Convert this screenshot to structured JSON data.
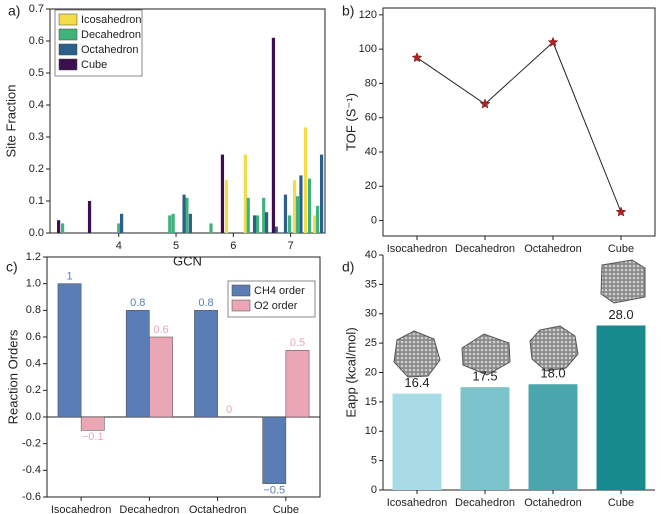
{
  "chart_data": [
    {
      "type": "bar",
      "panel_label": "a)",
      "x_label": "GCN",
      "y_label": "Site Fraction",
      "xlim": [
        2.8,
        7.6
      ],
      "xticks": [
        4,
        5,
        6,
        7
      ],
      "ylim": [
        0,
        0.7
      ],
      "yticks": [
        {
          "value": 0,
          "label": "0.0"
        },
        0.1,
        0.2,
        0.3,
        0.4,
        0.5,
        0.6,
        0.7
      ],
      "legend": "upper left",
      "series": [
        {
          "name": "Icosahedron",
          "color": "#f2dd46",
          "x": [
            5.88,
            6.21,
            7.07,
            7.26,
            7.42
          ],
          "values": [
            0.165,
            0.245,
            0.165,
            0.33,
            0.055
          ]
        },
        {
          "name": "Decahedron",
          "color": "#3fb37b",
          "x": [
            3.02,
            4.0,
            4.89,
            4.95,
            5.19,
            5.61,
            6.26,
            6.42,
            6.53,
            6.98,
            7.12,
            7.33,
            7.47
          ],
          "values": [
            0.03,
            0.03,
            0.055,
            0.06,
            0.11,
            0.03,
            0.11,
            0.055,
            0.11,
            0.055,
            0.115,
            0.17,
            0.085
          ]
        },
        {
          "name": "Octahedron",
          "color": "#2d5f8b",
          "x": [
            4.05,
            5.14,
            5.25,
            6.37,
            6.58,
            6.75,
            6.91,
            7.18,
            7.54
          ],
          "values": [
            0.06,
            0.12,
            0.06,
            0.055,
            0.065,
            0.02,
            0.12,
            0.18,
            0.245
          ]
        },
        {
          "name": "Cube",
          "color": "#3b0f50",
          "x": [
            2.95,
            3.49,
            5.81,
            6.7
          ],
          "values": [
            0.04,
            0.1,
            0.245,
            0.61
          ]
        }
      ]
    },
    {
      "type": "line",
      "panel_label": "b)",
      "y_label": "TOF (S⁻¹)",
      "categories": [
        "Isocahedron",
        "Decahedron",
        "Octahedron",
        "Cube"
      ],
      "values": [
        95,
        68,
        104,
        5
      ],
      "color": "#b22222",
      "line_color": "#222222",
      "ylim": [
        -9,
        124
      ],
      "yticks": [
        0,
        20,
        40,
        60,
        80,
        100,
        120
      ]
    },
    {
      "type": "grouped-bar",
      "panel_label": "c)",
      "y_label": "Reaction Orders",
      "categories": [
        "Isocahedron",
        "Decahedron",
        "Octahedron",
        "Cube"
      ],
      "ylim": [
        -0.6,
        1.2
      ],
      "yticks": [
        -0.6,
        -0.4,
        -0.2,
        {
          "value": 0,
          "label": "0.0"
        },
        0.2,
        0.4,
        0.6,
        0.8,
        {
          "value": 1,
          "label": "1.0"
        },
        1.2
      ],
      "legend": "upper right",
      "series": [
        {
          "name": "CH4 order",
          "color": "#5b7db6",
          "values": [
            1,
            0.8,
            0.8,
            -0.5
          ],
          "value_labels": [
            "1",
            "0.8",
            "0.8",
            "−0.5"
          ]
        },
        {
          "name": "O2 order",
          "color": "#eaa6b5",
          "values": [
            -0.1,
            0.6,
            0,
            0.5
          ],
          "value_labels": [
            "−0.1",
            "0.6",
            "0",
            "0.5"
          ]
        }
      ]
    },
    {
      "type": "bar",
      "panel_label": "d)",
      "y_label": "Eapp (kcal/mol)",
      "categories": [
        "Icosahedron",
        "Decahedron",
        "Octahedron",
        "Cube"
      ],
      "values": [
        16.4,
        17.5,
        18.0,
        28.0
      ],
      "value_labels": [
        "16.4",
        "17.5",
        "18.0",
        "28.0"
      ],
      "colors": [
        "#a8dbe5",
        "#7cc3cb",
        "#4aa5ac",
        "#168a8c"
      ],
      "ylim": [
        0,
        40
      ],
      "yticks": [
        0,
        5,
        10,
        15,
        20,
        25,
        30,
        35,
        40
      ]
    }
  ]
}
